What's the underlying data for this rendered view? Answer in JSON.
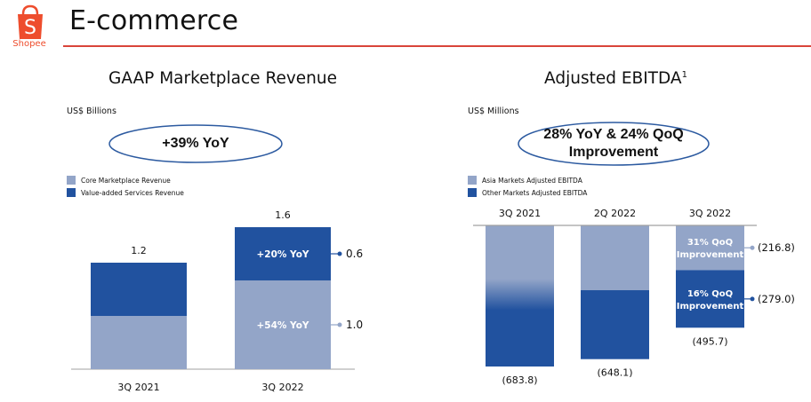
{
  "header": {
    "logo_text": "Shopee",
    "logo_letter": "S",
    "title": "E-commerce",
    "brand_color": "#ee4d2d",
    "divider_color": "#d9453a"
  },
  "colors": {
    "light": "#93a5c8",
    "dark": "#21529f",
    "ellipse_stroke": "#2c5aa0",
    "axis": "#a0a0a0"
  },
  "chart_data": [
    {
      "type": "bar",
      "stacked": true,
      "title": "GAAP Marketplace Revenue",
      "unit": "US$ Billions",
      "callout": "+39% YoY",
      "categories": [
        "3Q 2021",
        "3Q 2022"
      ],
      "series": [
        {
          "name": "Core Marketplace Revenue",
          "values": [
            0.6,
            1.0
          ],
          "color": "#93a5c8"
        },
        {
          "name": "Value-added Services Revenue",
          "values": [
            0.6,
            0.6
          ],
          "color": "#21529f"
        }
      ],
      "totals": [
        "1.2",
        "1.6"
      ],
      "segment_labels": {
        "3Q 2022": {
          "Core Marketplace Revenue": "+54% YoY",
          "Value-added Services Revenue": "+20% YoY"
        }
      },
      "side_labels": {
        "Value-added Services Revenue": "0.6",
        "Core Marketplace Revenue": "1.0"
      },
      "ylim": [
        0,
        1.6
      ],
      "legend": "top-left"
    },
    {
      "type": "bar",
      "stacked": true,
      "title": "Adjusted EBITDA",
      "title_superscript": "1",
      "unit": "US$ Millions",
      "callout_lines": [
        "28% YoY & 24% QoQ",
        "Improvement"
      ],
      "categories": [
        "3Q 2021",
        "2Q 2022",
        "3Q 2022"
      ],
      "series": [
        {
          "name": "Asia Markets Adjusted EBITDA",
          "values": [
            -355.0,
            -314.0,
            -216.8
          ],
          "color": "#93a5c8"
        },
        {
          "name": "Other Markets Adjusted EBITDA",
          "values": [
            -328.8,
            -334.1,
            -279.0
          ],
          "color": "#21529f"
        }
      ],
      "totals": [
        "(683.8)",
        "(648.1)",
        "(495.7)"
      ],
      "segment_labels": {
        "3Q 2022": {
          "Asia Markets Adjusted EBITDA": [
            "31% QoQ",
            "Improvement"
          ],
          "Other Markets Adjusted EBITDA": [
            "16% QoQ",
            "Improvement"
          ]
        }
      },
      "side_labels": {
        "Asia Markets Adjusted EBITDA": "(216.8)",
        "Other Markets Adjusted EBITDA": "(279.0)"
      },
      "ylim": [
        -683.8,
        0
      ],
      "legend": "top-left",
      "note": "3Q 2021 bar shows a gradient blend between segments"
    }
  ]
}
